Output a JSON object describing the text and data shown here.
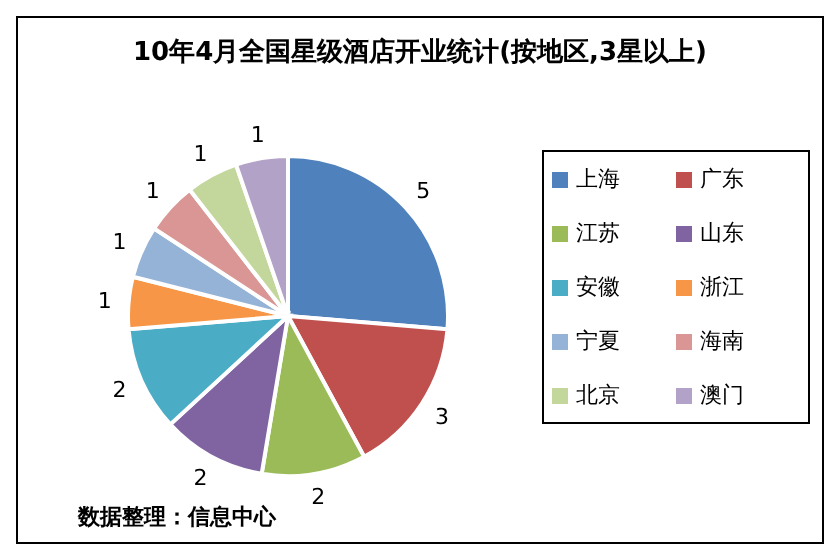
{
  "chart_data": {
    "type": "pie",
    "title": "10年4月全国星级酒店开业统计(按地区,3星以上)",
    "categories": [
      "上海",
      "广东",
      "江苏",
      "山东",
      "安徽",
      "浙江",
      "宁夏",
      "海南",
      "北京",
      "澳门"
    ],
    "values": [
      5,
      3,
      2,
      2,
      2,
      1,
      1,
      1,
      1,
      1
    ],
    "colors": [
      "#4f81bd",
      "#c0504d",
      "#9bbb59",
      "#8064a2",
      "#4bacc6",
      "#f79646",
      "#95b3d7",
      "#d99694",
      "#c3d69b",
      "#b3a2c7"
    ],
    "data_labels": true,
    "legend": "right",
    "annotations": [
      "数据整理：信息中心"
    ]
  }
}
